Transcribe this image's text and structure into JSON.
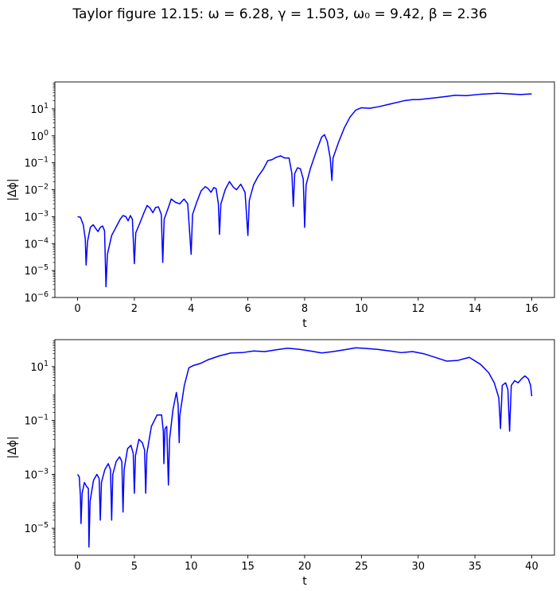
{
  "figure": {
    "title": "Taylor figure 12.15:   ω = 6.28,  γ = 1.503,  ω₀ = 9.42,  β = 2.36"
  },
  "chart_data": [
    {
      "type": "line",
      "xlabel": "t",
      "ylabel": "|Δϕ|",
      "yscale": "log",
      "xlim": [
        -0.8,
        16.8
      ],
      "ylim": [
        1e-06,
        100
      ],
      "xticks": [
        0,
        2,
        4,
        6,
        8,
        10,
        12,
        14,
        16
      ],
      "xtick_labels": [
        "0",
        "2",
        "4",
        "6",
        "8",
        "10",
        "12",
        "14",
        "16"
      ],
      "yticks": [
        1e-06,
        1e-05,
        0.0001,
        0.001,
        0.01,
        0.1,
        1,
        10
      ],
      "ytick_labels": [
        [
          "10",
          "−6"
        ],
        [
          "10",
          "−5"
        ],
        [
          "10",
          "−4"
        ],
        [
          "10",
          "−3"
        ],
        [
          "10",
          "−2"
        ],
        [
          "10",
          "−1"
        ],
        [
          "10",
          "0"
        ],
        [
          "10",
          "1"
        ]
      ],
      "grid": false,
      "series": [
        {
          "color": "#0000ff",
          "points": [
            [
              0,
              0.001
            ],
            [
              0.1,
              0.00095
            ],
            [
              0.2,
              0.0005
            ],
            [
              0.27,
              0.00015
            ],
            [
              0.3,
              1.6e-05
            ],
            [
              0.35,
              0.00012
            ],
            [
              0.45,
              0.0004
            ],
            [
              0.55,
              0.0005
            ],
            [
              0.65,
              0.00035
            ],
            [
              0.72,
              0.00028
            ],
            [
              0.8,
              0.0004
            ],
            [
              0.88,
              0.00045
            ],
            [
              0.95,
              0.0003
            ],
            [
              1.0,
              2.5e-06
            ],
            [
              1.05,
              4e-05
            ],
            [
              1.2,
              0.0002
            ],
            [
              1.35,
              0.0004
            ],
            [
              1.5,
              0.0008
            ],
            [
              1.6,
              0.0011
            ],
            [
              1.7,
              0.001
            ],
            [
              1.78,
              0.0007
            ],
            [
              1.86,
              0.0011
            ],
            [
              1.93,
              0.0008
            ],
            [
              2.0,
              1.8e-05
            ],
            [
              2.05,
              0.00025
            ],
            [
              2.2,
              0.0006
            ],
            [
              2.35,
              0.0015
            ],
            [
              2.45,
              0.0026
            ],
            [
              2.55,
              0.0021
            ],
            [
              2.65,
              0.0014
            ],
            [
              2.75,
              0.0022
            ],
            [
              2.85,
              0.0023
            ],
            [
              2.95,
              0.0012
            ],
            [
              3.0,
              2e-05
            ],
            [
              3.05,
              0.0008
            ],
            [
              3.2,
              0.0022
            ],
            [
              3.3,
              0.0045
            ],
            [
              3.45,
              0.0034
            ],
            [
              3.6,
              0.003
            ],
            [
              3.75,
              0.0045
            ],
            [
              3.88,
              0.003
            ],
            [
              4.0,
              4e-05
            ],
            [
              4.05,
              0.0012
            ],
            [
              4.2,
              0.0035
            ],
            [
              4.35,
              0.009
            ],
            [
              4.5,
              0.013
            ],
            [
              4.6,
              0.011
            ],
            [
              4.7,
              0.008
            ],
            [
              4.8,
              0.012
            ],
            [
              4.88,
              0.011
            ],
            [
              4.96,
              0.003
            ],
            [
              5.0,
              0.00022
            ],
            [
              5.05,
              0.003
            ],
            [
              5.2,
              0.01
            ],
            [
              5.35,
              0.02
            ],
            [
              5.5,
              0.012
            ],
            [
              5.6,
              0.01
            ],
            [
              5.75,
              0.016
            ],
            [
              5.9,
              0.008
            ],
            [
              6.0,
              0.0002
            ],
            [
              6.05,
              0.004
            ],
            [
              6.2,
              0.015
            ],
            [
              6.35,
              0.03
            ],
            [
              6.55,
              0.06
            ],
            [
              6.7,
              0.12
            ],
            [
              6.85,
              0.13
            ],
            [
              7.0,
              0.16
            ],
            [
              7.15,
              0.18
            ],
            [
              7.3,
              0.15
            ],
            [
              7.45,
              0.15
            ],
            [
              7.55,
              0.04
            ],
            [
              7.6,
              0.0024
            ],
            [
              7.65,
              0.04
            ],
            [
              7.75,
              0.065
            ],
            [
              7.85,
              0.06
            ],
            [
              7.95,
              0.025
            ],
            [
              8.0,
              0.0004
            ],
            [
              8.05,
              0.015
            ],
            [
              8.2,
              0.06
            ],
            [
              8.4,
              0.25
            ],
            [
              8.6,
              0.9
            ],
            [
              8.7,
              1.1
            ],
            [
              8.8,
              0.6
            ],
            [
              8.9,
              0.15
            ],
            [
              8.96,
              0.022
            ],
            [
              9.0,
              0.15
            ],
            [
              9.2,
              0.6
            ],
            [
              9.4,
              2
            ],
            [
              9.6,
              5
            ],
            [
              9.8,
              9
            ],
            [
              10.0,
              11
            ],
            [
              10.3,
              10.5
            ],
            [
              10.6,
              12
            ],
            [
              11.0,
              15
            ],
            [
              11.5,
              20
            ],
            [
              11.8,
              22
            ],
            [
              12.0,
              22
            ],
            [
              12.5,
              25
            ],
            [
              13.0,
              29
            ],
            [
              13.3,
              32
            ],
            [
              13.7,
              31
            ],
            [
              14.2,
              35
            ],
            [
              14.8,
              38
            ],
            [
              15.2,
              36
            ],
            [
              15.6,
              34
            ],
            [
              16.0,
              36
            ]
          ]
        }
      ]
    },
    {
      "type": "line",
      "xlabel": "t",
      "ylabel": "|Δϕ|",
      "yscale": "log",
      "xlim": [
        -2,
        42
      ],
      "ylim": [
        1e-06,
        100
      ],
      "xticks": [
        0,
        5,
        10,
        15,
        20,
        25,
        30,
        35,
        40
      ],
      "xtick_labels": [
        "0",
        "5",
        "10",
        "15",
        "20",
        "25",
        "30",
        "35",
        "40"
      ],
      "yticks": [
        1e-05,
        0.001,
        0.1,
        10
      ],
      "ytick_labels": [
        [
          "10",
          "−5"
        ],
        [
          "10",
          "−3"
        ],
        [
          "10",
          "−1"
        ],
        [
          "10",
          "1"
        ]
      ],
      "grid": false,
      "series": [
        {
          "color": "#0000ff",
          "points": [
            [
              0,
              0.001
            ],
            [
              0.15,
              0.0008
            ],
            [
              0.25,
              0.00015
            ],
            [
              0.3,
              1.5e-05
            ],
            [
              0.4,
              0.0002
            ],
            [
              0.6,
              0.0005
            ],
            [
              0.8,
              0.00035
            ],
            [
              0.95,
              0.0003
            ],
            [
              1.0,
              2e-06
            ],
            [
              1.1,
              0.0001
            ],
            [
              1.4,
              0.0006
            ],
            [
              1.7,
              0.001
            ],
            [
              1.9,
              0.0007
            ],
            [
              2.0,
              2e-05
            ],
            [
              2.1,
              0.0005
            ],
            [
              2.4,
              0.0015
            ],
            [
              2.7,
              0.0025
            ],
            [
              2.9,
              0.0015
            ],
            [
              3.0,
              2e-05
            ],
            [
              3.1,
              0.001
            ],
            [
              3.4,
              0.003
            ],
            [
              3.7,
              0.0045
            ],
            [
              3.9,
              0.003
            ],
            [
              4.0,
              4e-05
            ],
            [
              4.1,
              0.0015
            ],
            [
              4.4,
              0.009
            ],
            [
              4.7,
              0.012
            ],
            [
              4.9,
              0.006
            ],
            [
              5.0,
              0.0002
            ],
            [
              5.1,
              0.005
            ],
            [
              5.4,
              0.02
            ],
            [
              5.7,
              0.015
            ],
            [
              5.9,
              0.008
            ],
            [
              6.0,
              0.0002
            ],
            [
              6.1,
              0.006
            ],
            [
              6.5,
              0.06
            ],
            [
              7.0,
              0.16
            ],
            [
              7.4,
              0.16
            ],
            [
              7.55,
              0.04
            ],
            [
              7.6,
              0.0025
            ],
            [
              7.7,
              0.05
            ],
            [
              7.85,
              0.06
            ],
            [
              8.0,
              0.0004
            ],
            [
              8.1,
              0.02
            ],
            [
              8.4,
              0.25
            ],
            [
              8.7,
              1.1
            ],
            [
              8.85,
              0.4
            ],
            [
              8.95,
              0.015
            ],
            [
              9.0,
              0.15
            ],
            [
              9.4,
              2
            ],
            [
              9.8,
              9
            ],
            [
              10.2,
              11
            ],
            [
              10.8,
              13
            ],
            [
              11.5,
              18
            ],
            [
              12.5,
              25
            ],
            [
              13.5,
              32
            ],
            [
              14.5,
              33
            ],
            [
              15.5,
              38
            ],
            [
              16.5,
              36
            ],
            [
              17.5,
              42
            ],
            [
              18.5,
              48
            ],
            [
              19.5,
              44
            ],
            [
              20.5,
              38
            ],
            [
              21.5,
              32
            ],
            [
              22.5,
              36
            ],
            [
              23.5,
              42
            ],
            [
              24.5,
              50
            ],
            [
              25.5,
              47
            ],
            [
              26.5,
              43
            ],
            [
              27.5,
              38
            ],
            [
              28.5,
              33
            ],
            [
              29.5,
              36
            ],
            [
              30.5,
              30
            ],
            [
              31.5,
              22
            ],
            [
              32.5,
              16
            ],
            [
              33.5,
              17
            ],
            [
              34.5,
              22
            ],
            [
              35.5,
              12
            ],
            [
              36.2,
              6
            ],
            [
              36.7,
              2.5
            ],
            [
              37.1,
              0.7
            ],
            [
              37.25,
              0.05
            ],
            [
              37.4,
              2
            ],
            [
              37.7,
              2.5
            ],
            [
              37.9,
              1.4
            ],
            [
              38.05,
              0.04
            ],
            [
              38.2,
              2
            ],
            [
              38.5,
              3
            ],
            [
              38.8,
              2.5
            ],
            [
              39.1,
              3.5
            ],
            [
              39.4,
              4.5
            ],
            [
              39.7,
              3.5
            ],
            [
              39.9,
              2
            ],
            [
              40.0,
              0.8
            ]
          ]
        }
      ]
    }
  ]
}
